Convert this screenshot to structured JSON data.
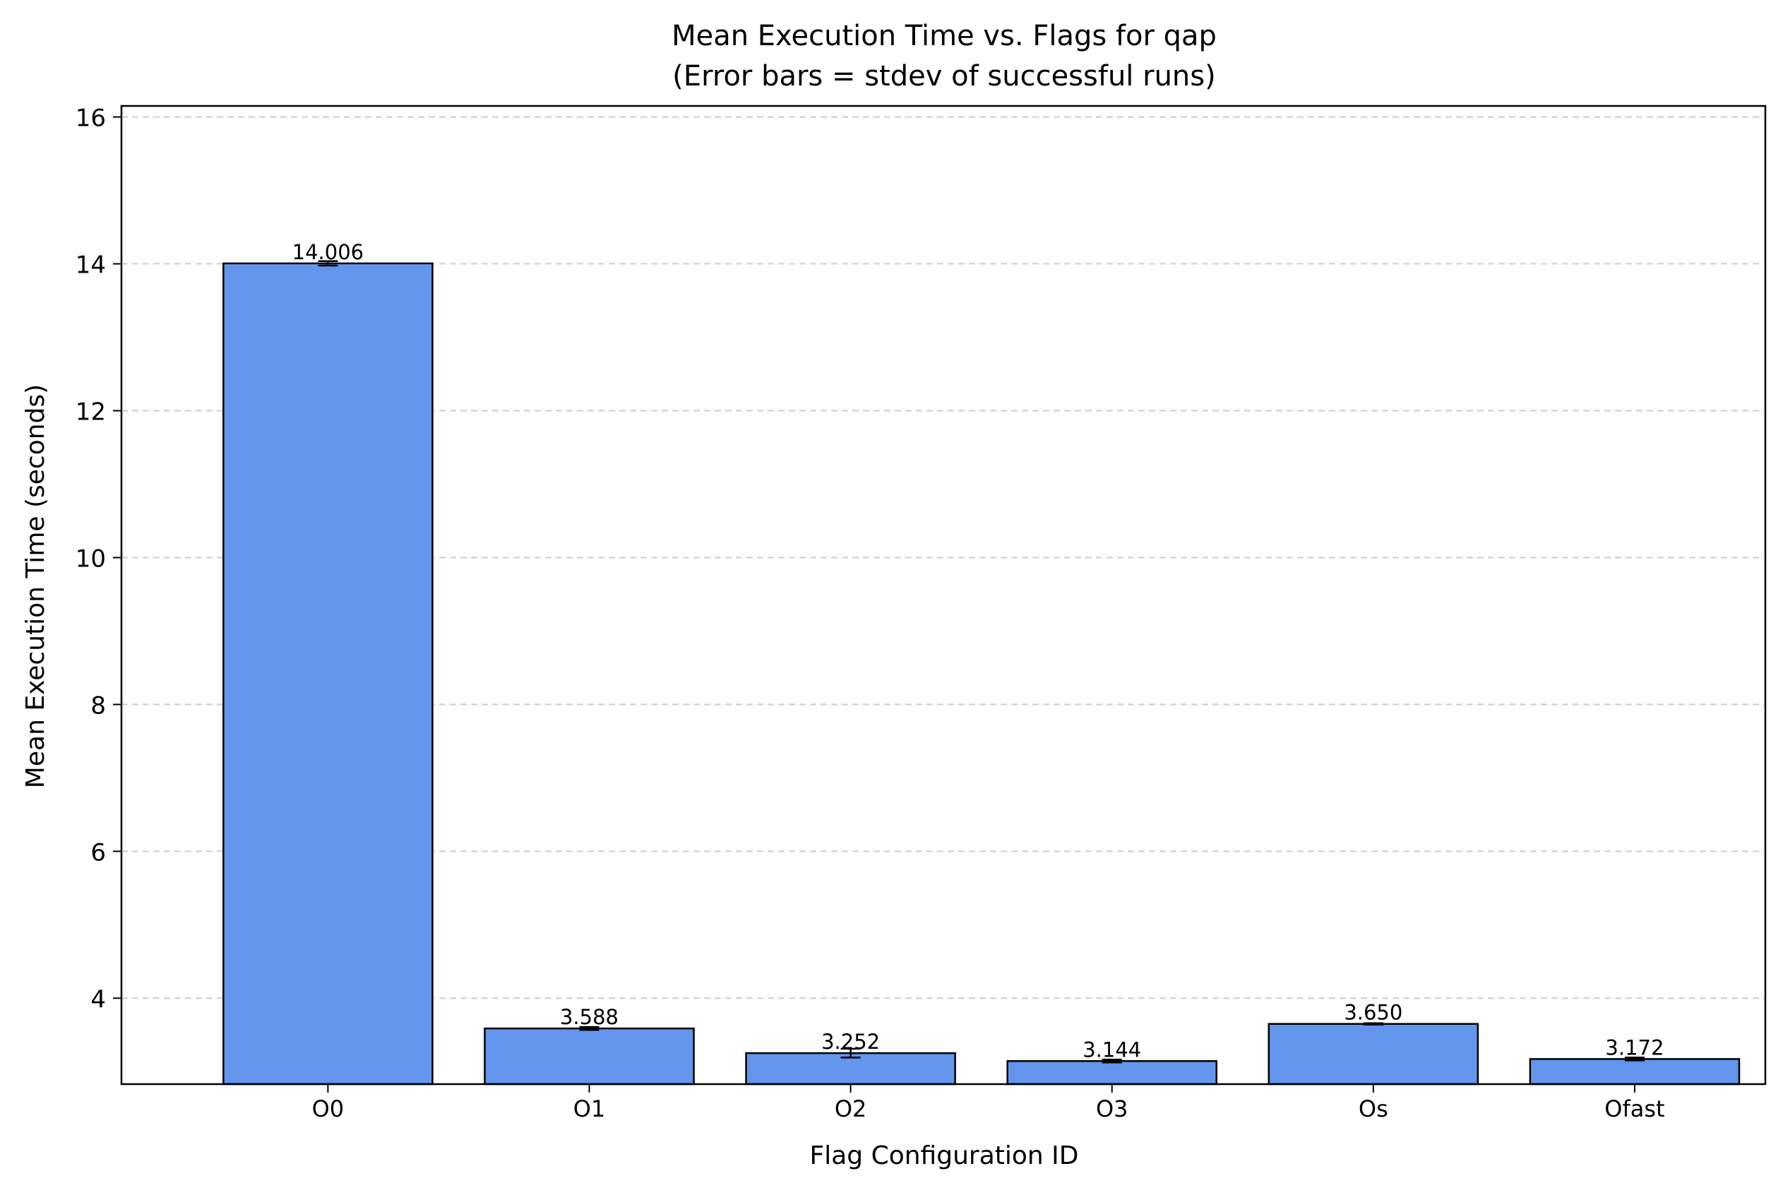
{
  "chart_data": {
    "type": "bar",
    "title": "Mean Execution Time vs. Flags for qap",
    "subtitle": "(Error bars = stdev of successful runs)",
    "xlabel": "Flag Configuration ID",
    "ylabel": "Mean Execution Time (seconds)",
    "categories": [
      "O0",
      "O1",
      "O2",
      "O3",
      "Os",
      "Ofast"
    ],
    "values": [
      14.006,
      3.588,
      3.252,
      3.144,
      3.65,
      3.172
    ],
    "value_labels": [
      "14.006",
      "3.588",
      "3.252",
      "3.144",
      "3.650",
      "3.172"
    ],
    "errors": [
      0.03,
      0.02,
      0.06,
      0.02,
      0.01,
      0.02
    ],
    "ylim": [
      2.83,
      16.15
    ],
    "yticks": [
      4,
      6,
      8,
      10,
      12,
      14,
      16
    ],
    "ytick_labels": [
      "4",
      "6",
      "8",
      "10",
      "12",
      "14",
      "16"
    ],
    "grid": "y-dashed",
    "legend": "none",
    "bar_color": "#6495ED",
    "edge_color": "#000000",
    "grid_color": "#cccccc"
  }
}
